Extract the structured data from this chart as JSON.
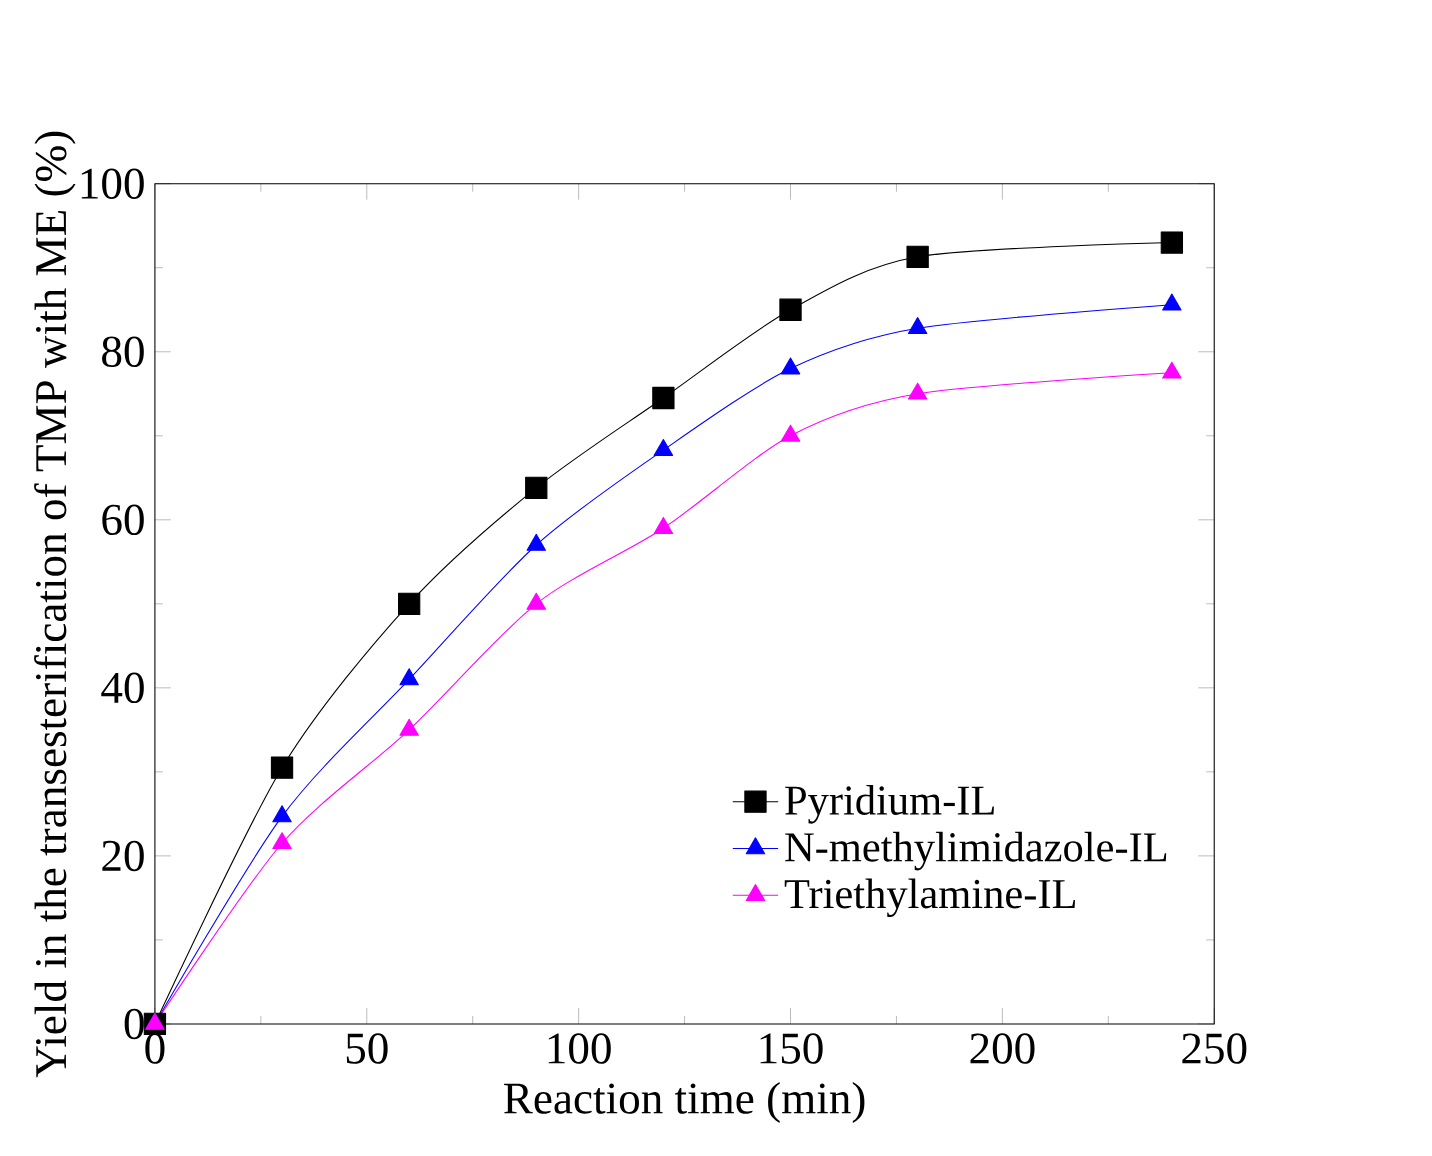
{
  "chart_data": {
    "type": "line",
    "xlabel": "Reaction time (min)",
    "ylabel": "Yield in the transesterification of TMP with ME (%)",
    "xlim": [
      0,
      250
    ],
    "xticks": [
      0,
      50,
      100,
      150,
      200,
      250
    ],
    "ylim": [
      0,
      100
    ],
    "yticks": [
      0,
      20,
      40,
      60,
      80,
      100
    ],
    "legend": "bottom right",
    "grid": false,
    "series": [
      {
        "name": "Pyridium-IL",
        "color": "#000000",
        "marker": "square",
        "x": [
          0,
          30,
          60,
          90,
          120,
          150,
          180,
          240
        ],
        "values": [
          0,
          30.5,
          50,
          63.8,
          74.5,
          85,
          91.3,
          93
        ]
      },
      {
        "name": "N-methylimidazole-IL",
        "color": "#0000ff",
        "marker": "triangle",
        "x": [
          0,
          30,
          60,
          90,
          120,
          150,
          180,
          240
        ],
        "values": [
          0,
          24.7,
          41,
          57,
          68.3,
          78,
          82.8,
          85.6
        ]
      },
      {
        "name": "Triethylamine-IL",
        "color": "#ff00ff",
        "marker": "triangle",
        "x": [
          0,
          30,
          60,
          90,
          120,
          150,
          180,
          240
        ],
        "values": [
          0,
          21.5,
          35,
          50,
          59,
          70,
          75,
          77.5
        ]
      }
    ]
  }
}
